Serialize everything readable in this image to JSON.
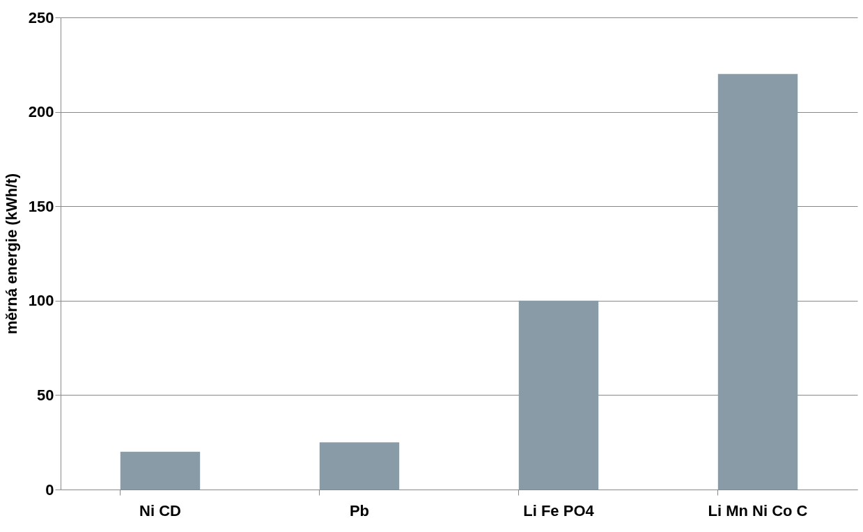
{
  "chart_data": {
    "type": "bar",
    "ylabel": "měrná energie (kWh/t)",
    "categories": [
      "Ni CD",
      "Pb",
      "Li Fe PO4",
      "Li Mn Ni Co C"
    ],
    "values": [
      20,
      25,
      100,
      220
    ],
    "color": "#8a9ba8",
    "ylim": [
      0,
      250
    ],
    "yticks": [
      0,
      50,
      100,
      150,
      200,
      250
    ],
    "grid": "y"
  }
}
